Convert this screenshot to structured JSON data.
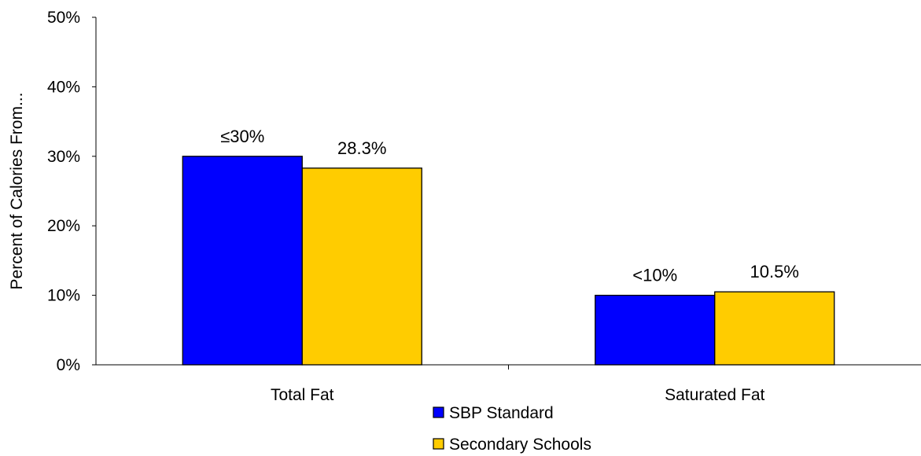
{
  "chart_data": {
    "type": "bar",
    "title": "",
    "xlabel": "",
    "ylabel": "Percent of Calories From...",
    "ylim": [
      0,
      50
    ],
    "yticks": [
      "0%",
      "10%",
      "20%",
      "30%",
      "40%",
      "50%"
    ],
    "grid": false,
    "legend_position": "bottom",
    "categories": [
      "Total Fat",
      "Saturated Fat"
    ],
    "series": [
      {
        "name": "SBP Standard",
        "values": [
          30,
          10
        ],
        "labels": [
          "≤30%",
          "<10%"
        ],
        "color": "#0000FF"
      },
      {
        "name": "Secondary Schools",
        "values": [
          28.3,
          10.5
        ],
        "labels": [
          "28.3%",
          "10.5%"
        ],
        "color": "#FFCC00"
      }
    ]
  }
}
